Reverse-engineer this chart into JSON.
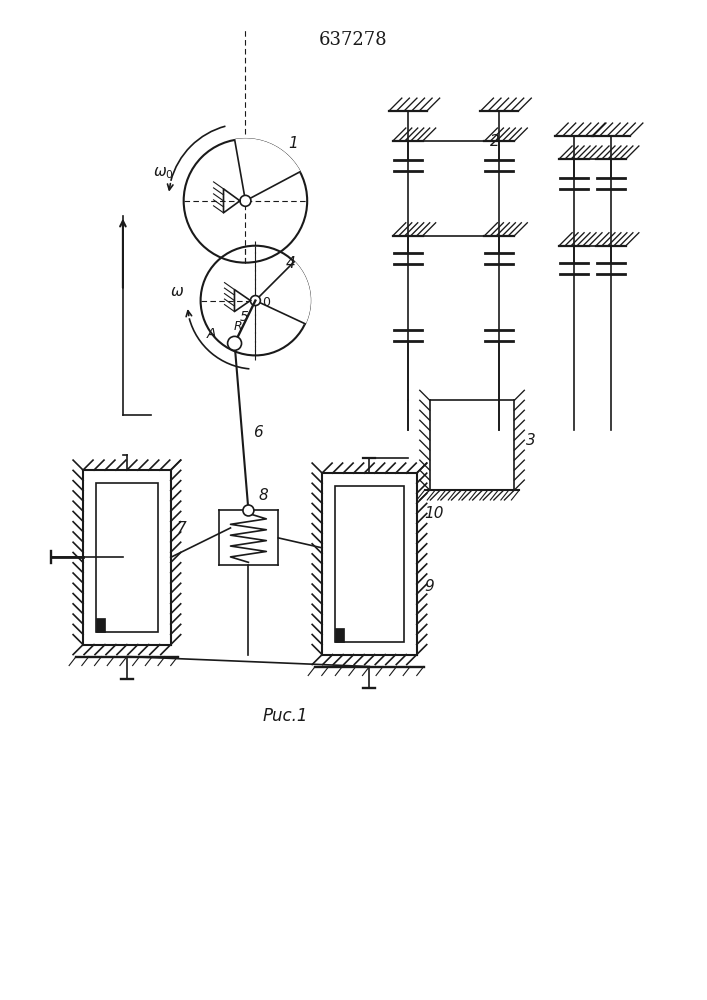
{
  "title": "637278",
  "fig_label": "Puc.1",
  "bg_color": "#ffffff",
  "line_color": "#1a1a1a"
}
